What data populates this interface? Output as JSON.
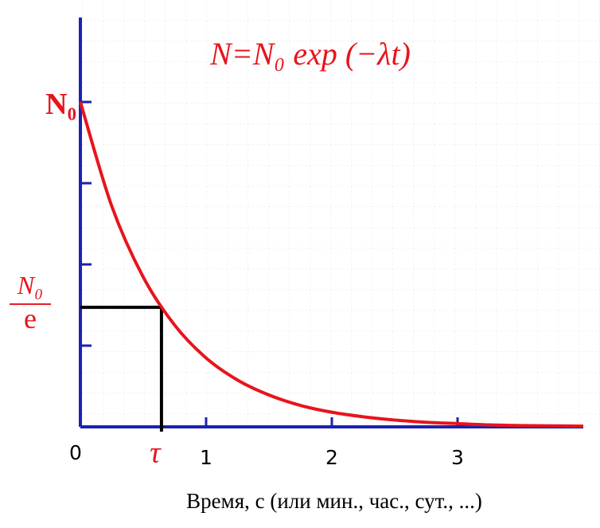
{
  "chart_data": {
    "type": "line",
    "title": "N=N₀ exp (−λt)",
    "x_label": "Время, с (или мин., час., сут., ...)",
    "x": [
      0,
      0.25,
      0.5,
      0.75,
      1,
      1.25,
      1.5,
      1.75,
      2,
      2.25,
      2.5,
      2.75,
      3,
      3.25,
      3.5,
      3.75,
      4
    ],
    "series": [
      {
        "color": "#e8141c",
        "values": [
          1,
          0.679,
          0.461,
          0.313,
          0.212,
          0.144,
          0.098,
          0.066,
          0.045,
          0.031,
          0.021,
          0.014,
          0.01,
          0.006,
          0.004,
          0.003,
          0.002
        ]
      }
    ],
    "xlim": [
      0,
      4
    ],
    "ylim": [
      0,
      1.26
    ],
    "xticks": [
      0,
      1,
      2,
      3
    ],
    "yticks": [
      {
        "value": 1,
        "label": "N₀"
      }
    ],
    "y_minor_ticks": [
      0.25,
      0.5,
      0.75
    ],
    "axis_color": "#1c22b0",
    "marker": {
      "x": 0.645,
      "x_label": "τ",
      "y": 0.368,
      "y_label_numerator": "N₀",
      "y_label_denominator": "e",
      "color": "#000000"
    }
  }
}
